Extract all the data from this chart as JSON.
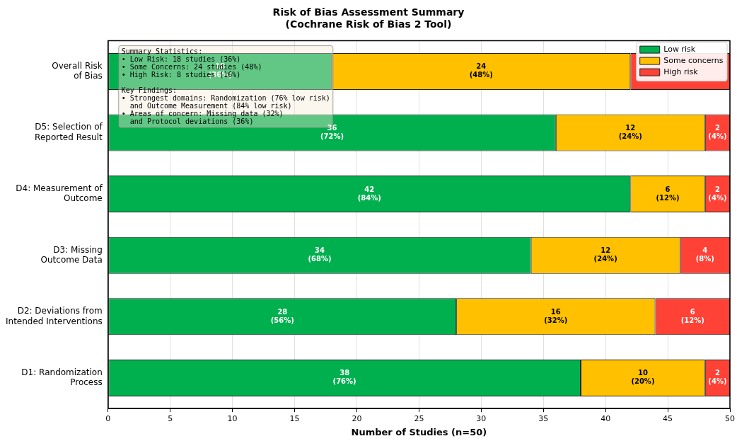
{
  "chart_data": {
    "type": "bar",
    "orientation": "horizontal",
    "stacked": true,
    "title": "Risk of Bias Assessment Summary\n(Cochrane Risk of Bias 2 Tool)",
    "xlabel": "Number of Studies (n=50)",
    "categories": [
      "Overall Risk\nof Bias",
      "D5: Selection of\nReported Result",
      "D4: Measurement of\nOutcome",
      "D3: Missing\nOutcome Data",
      "D2: Deviations from\nIntended Interventions",
      "D1: Randomization\nProcess"
    ],
    "series": [
      {
        "name": "Low risk",
        "color": "#00b04f",
        "values": [
          18,
          36,
          42,
          34,
          28,
          38
        ],
        "value_labels": [
          "18\n(36%)",
          "36\n(72%)",
          "42\n(84%)",
          "34\n(68%)",
          "28\n(56%)",
          "38\n(76%)"
        ]
      },
      {
        "name": "Some concerns",
        "color": "#ffc000",
        "values": [
          24,
          12,
          6,
          12,
          16,
          10
        ],
        "value_labels": [
          "24\n(48%)",
          "12\n(24%)",
          "6\n(12%)",
          "12\n(24%)",
          "16\n(32%)",
          "10\n(20%)"
        ]
      },
      {
        "name": "High risk",
        "color": "#ff4136",
        "values": [
          8,
          2,
          2,
          4,
          6,
          2
        ],
        "value_labels": [
          null,
          "2\n(4%)",
          "2\n(4%)",
          "4\n(8%)",
          "6\n(12%)",
          "2\n(4%)"
        ]
      }
    ],
    "xlim": [
      0,
      50
    ],
    "xticks": [
      0,
      5,
      10,
      15,
      20,
      25,
      30,
      35,
      40,
      45,
      50
    ],
    "grid": "x",
    "legend": "top right",
    "annotations": [
      "Summary Statistics:\n• Low Risk: 18 studies (36%)\n• Some Concerns: 24 studies (48%)\n• High Risk: 8 studies (16%)\n\nKey Findings:\n• Strongest domains: Randomization (76% low risk)\n  and Outcome Measurement (84% low risk)\n• Areas of concern: Missing data (32%)\n  and Protocol deviations (36%)"
    ]
  }
}
